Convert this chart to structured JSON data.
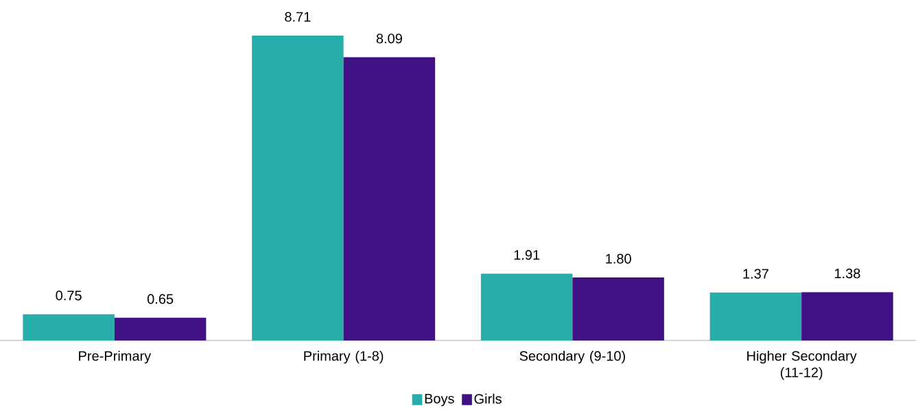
{
  "chart_data": {
    "type": "bar",
    "categories": [
      "Pre-Primary",
      "Primary (1-8)",
      "Secondary (9-10)",
      "Higher Secondary (11-12)"
    ],
    "series": [
      {
        "name": "Boys",
        "color": "#27adaa",
        "values": [
          0.75,
          8.71,
          1.91,
          1.37
        ],
        "value_labels": [
          "0.75",
          "8.71",
          "1.91",
          "1.37"
        ]
      },
      {
        "name": "Girls",
        "color": "#3f1185",
        "values": [
          0.65,
          8.09,
          1.8,
          1.38
        ],
        "value_labels": [
          "0.65",
          "8.09",
          "1.80",
          "1.38"
        ]
      }
    ],
    "legend": "bottom"
  }
}
